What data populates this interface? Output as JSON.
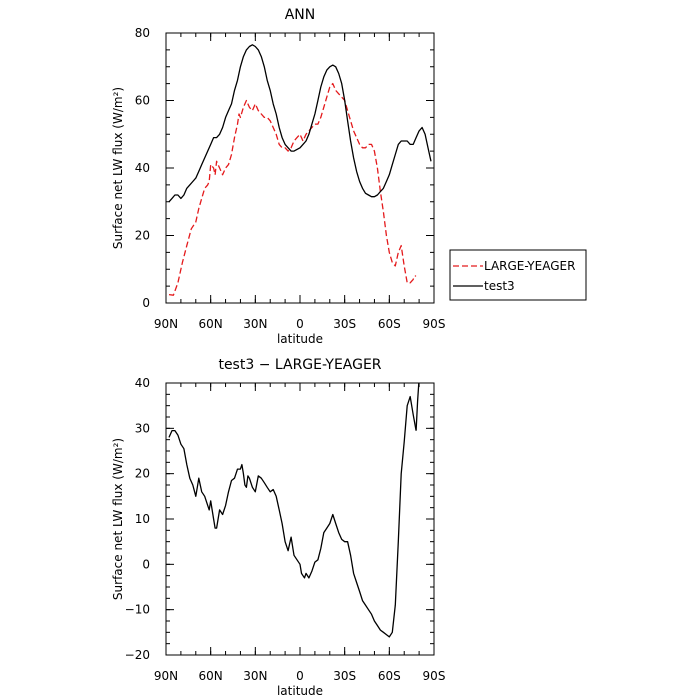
{
  "chart_data": [
    {
      "type": "line",
      "title": "ANN",
      "xlabel": "latitude",
      "ylabel": "Surface net LW flux (W/m²)",
      "xlim": [
        90,
        -90
      ],
      "ylim": [
        0,
        80
      ],
      "xticks": [
        90,
        60,
        30,
        0,
        -30,
        -60,
        -90
      ],
      "xtick_labels": [
        "90N",
        "60N",
        "30N",
        "0",
        "30S",
        "60S",
        "90S"
      ],
      "yticks": [
        0,
        20,
        40,
        60,
        80
      ],
      "ytick_labels": [
        "0",
        "20",
        "40",
        "60",
        "80"
      ],
      "legend_position": "right-outside",
      "series": [
        {
          "name": "LARGE-YEAGER",
          "color": "#e41a1c",
          "dash": "dashed",
          "x": [
            88,
            85,
            82,
            79,
            76,
            73,
            70,
            68,
            66,
            64,
            62,
            61,
            60,
            58,
            57,
            56,
            54,
            52,
            50,
            48,
            46,
            44,
            42,
            41,
            40,
            38,
            36,
            34,
            32,
            30,
            28,
            26,
            24,
            22,
            20,
            18,
            16,
            14,
            12,
            10,
            8,
            6,
            4,
            2,
            0,
            -2,
            -4,
            -6,
            -8,
            -10,
            -12,
            -14,
            -16,
            -18,
            -20,
            -22,
            -24,
            -26,
            -28,
            -30,
            -32,
            -34,
            -36,
            -38,
            -40,
            -42,
            -44,
            -46,
            -48,
            -50,
            -52,
            -54,
            -56,
            -58,
            -60,
            -62,
            -64,
            -66,
            -68,
            -70,
            -72,
            -74,
            -76,
            -77,
            -78
          ],
          "values": [
            2.5,
            2.3,
            6,
            12,
            17,
            22,
            24,
            28,
            31,
            34,
            35,
            36,
            41,
            40,
            38,
            42,
            40,
            38,
            40,
            41,
            44,
            49,
            53,
            56,
            55,
            58,
            60,
            58,
            57,
            59,
            57,
            56,
            55,
            55,
            54,
            52,
            50,
            47,
            46,
            46,
            45,
            46,
            48,
            49,
            50,
            48,
            50,
            51,
            52,
            53,
            53,
            55,
            58,
            61,
            64,
            65,
            63,
            62,
            61,
            60,
            57,
            54,
            51,
            49,
            47,
            46,
            46,
            47,
            47,
            45,
            40,
            33,
            27,
            20,
            15,
            12,
            11,
            15,
            17,
            11,
            6,
            6,
            7,
            8,
            8
          ]
        },
        {
          "name": "test3",
          "color": "#000000",
          "dash": "solid",
          "x": [
            88,
            86,
            84,
            82,
            80,
            78,
            76,
            74,
            72,
            70,
            68,
            66,
            64,
            62,
            60,
            58,
            56,
            54,
            52,
            50,
            48,
            46,
            44,
            42,
            40,
            38,
            36,
            34,
            32,
            30,
            28,
            26,
            24,
            22,
            20,
            18,
            16,
            14,
            12,
            10,
            8,
            6,
            4,
            2,
            0,
            -2,
            -4,
            -6,
            -8,
            -10,
            -12,
            -14,
            -16,
            -18,
            -20,
            -22,
            -24,
            -26,
            -28,
            -30,
            -32,
            -34,
            -36,
            -38,
            -40,
            -42,
            -44,
            -46,
            -48,
            -50,
            -52,
            -54,
            -56,
            -58,
            -60,
            -62,
            -64,
            -66,
            -68,
            -70,
            -72,
            -74,
            -76,
            -78,
            -80,
            -82,
            -84,
            -86,
            -88
          ],
          "values": [
            30,
            31,
            32,
            32,
            31,
            32,
            34,
            35,
            36,
            37,
            39,
            41,
            43,
            45,
            47,
            49,
            49,
            50,
            52,
            55,
            57,
            59,
            63,
            66,
            70,
            73,
            75,
            76,
            76.5,
            76,
            75,
            73,
            70,
            66,
            63,
            59,
            56,
            52,
            49,
            47,
            46,
            45,
            45,
            45.5,
            46,
            47,
            48,
            50,
            53,
            56,
            60,
            64,
            67,
            69,
            70,
            70.5,
            70,
            68,
            65,
            60,
            54,
            48,
            43,
            39,
            36,
            34,
            32.5,
            32,
            31.5,
            31.5,
            32,
            33,
            34,
            36,
            38,
            41,
            44,
            47,
            48,
            48,
            48,
            47,
            47,
            49,
            51,
            52,
            50,
            46,
            42
          ]
        }
      ]
    },
    {
      "type": "line",
      "title": "test3 − LARGE-YEAGER",
      "xlabel": "latitude",
      "ylabel": "Surface net LW flux (W/m²)",
      "xlim": [
        90,
        -90
      ],
      "ylim": [
        -20,
        40
      ],
      "xticks": [
        90,
        60,
        30,
        0,
        -30,
        -60,
        -90
      ],
      "xtick_labels": [
        "90N",
        "60N",
        "30N",
        "0",
        "30S",
        "60S",
        "90S"
      ],
      "yticks": [
        -20,
        -10,
        0,
        10,
        20,
        30,
        40
      ],
      "ytick_labels": [
        "−20",
        "−10",
        "0",
        "10",
        "20",
        "30",
        "40"
      ],
      "series": [
        {
          "color": "#000000",
          "dash": "solid",
          "x": [
            88,
            86,
            84,
            82,
            80,
            78,
            76,
            74,
            72,
            70,
            69,
            68,
            66,
            64,
            62,
            61,
            60,
            58,
            57,
            56,
            54,
            52,
            50,
            48,
            46,
            44,
            42,
            40,
            39,
            38,
            37,
            36,
            35,
            34,
            32,
            30,
            28,
            26,
            24,
            22,
            20,
            18,
            16,
            14,
            12,
            10,
            8,
            6,
            4,
            2,
            0,
            -1,
            -2,
            -3,
            -4,
            -6,
            -8,
            -10,
            -12,
            -14,
            -16,
            -18,
            -20,
            -22,
            -24,
            -26,
            -28,
            -30,
            -32,
            -34,
            -36,
            -38,
            -40,
            -42,
            -44,
            -46,
            -48,
            -50,
            -52,
            -54,
            -56,
            -58,
            -60,
            -62,
            -64,
            -66,
            -68,
            -70,
            -72,
            -74,
            -76,
            -78
          ],
          "values": [
            28,
            29.5,
            29.5,
            28.5,
            26.5,
            25.5,
            22,
            19,
            17.5,
            15,
            17,
            19,
            16,
            15,
            13,
            12,
            14,
            10,
            8,
            8,
            12,
            11,
            13,
            16,
            18.5,
            19,
            21,
            21,
            22,
            20,
            17.5,
            17,
            19.5,
            19,
            17,
            16,
            19.5,
            19,
            18,
            17,
            16,
            16.5,
            15,
            12,
            9,
            5,
            3,
            6,
            2,
            1,
            0,
            -2,
            -2.5,
            -3,
            -2,
            -3,
            -1.5,
            0.5,
            1,
            3.5,
            7,
            8,
            9,
            11,
            9,
            7,
            5.5,
            5,
            5,
            2,
            -2,
            -4,
            -6,
            -8,
            -9,
            -10,
            -11,
            -12.5,
            -13.5,
            -14.5,
            -15,
            -15.5,
            -16,
            -15,
            -9,
            5,
            20,
            27,
            35,
            37,
            33,
            29.5
          ]
        },
        {
          "color": "#000000",
          "dash": "solid",
          "x": [
            -78,
            -79,
            -80
          ],
          "values": [
            29.5,
            36,
            41
          ]
        }
      ]
    }
  ]
}
